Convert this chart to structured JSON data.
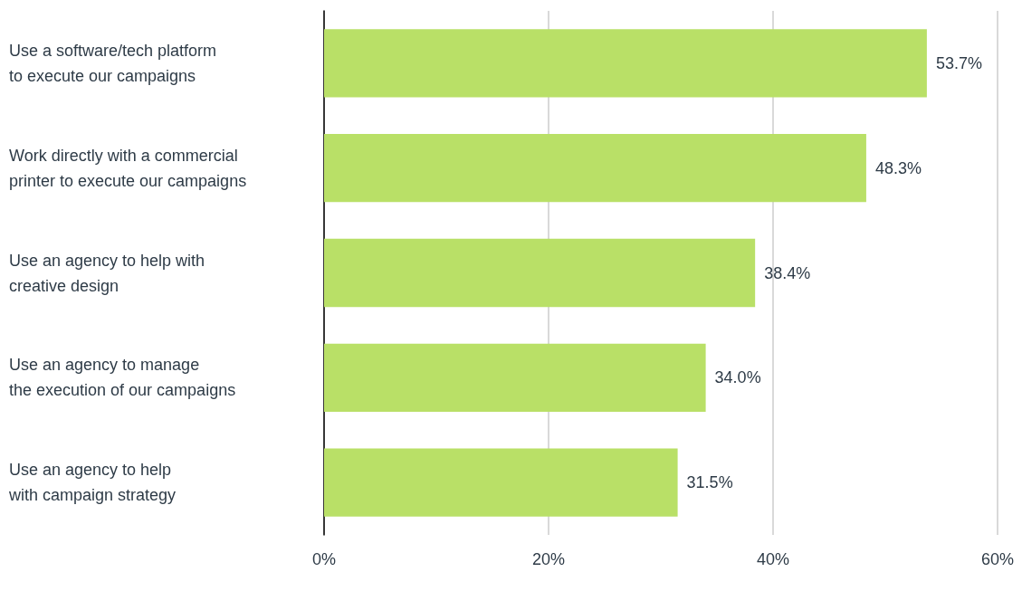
{
  "chart_data": {
    "type": "bar",
    "orientation": "horizontal",
    "categories": [
      "Use a software/tech platform\nto execute our campaigns",
      "Work directly with a commercial\nprinter to execute our campaigns",
      "Use an agency to help with\ncreative design",
      "Use an agency to manage\nthe execution of our campaigns",
      "Use an agency to help\nwith campaign strategy"
    ],
    "values": [
      53.7,
      48.3,
      38.4,
      34.0,
      31.5
    ],
    "value_labels": [
      "53.7%",
      "48.3%",
      "38.4%",
      "34.0%",
      "31.5%"
    ],
    "color": "#b9e067",
    "xlim": [
      0,
      60
    ],
    "xticks": [
      {
        "value": 0,
        "label": "0%"
      },
      {
        "value": 20,
        "label": "20%"
      },
      {
        "value": 40,
        "label": "40%"
      },
      {
        "value": 60,
        "label": "60%"
      }
    ],
    "grid": "x"
  }
}
